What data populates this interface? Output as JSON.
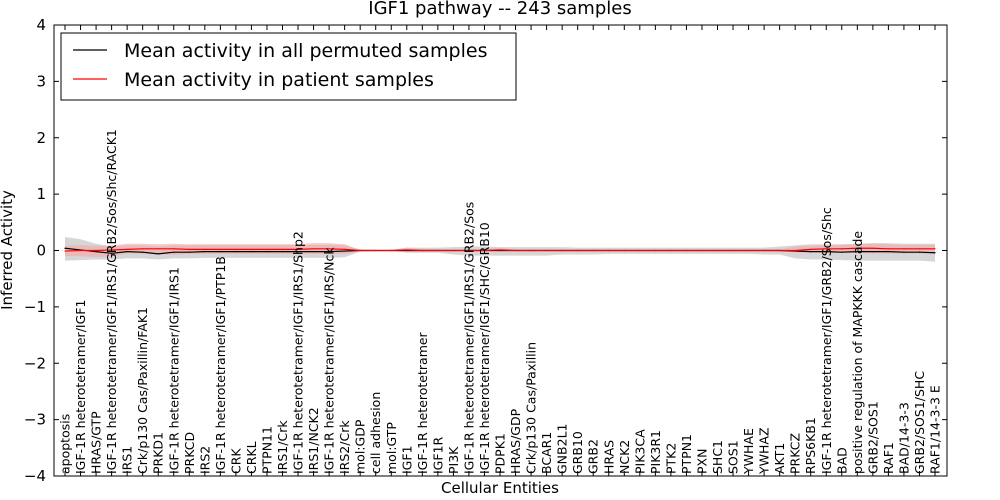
{
  "chart_data": {
    "type": "line",
    "title": "IGF1 pathway -- 243 samples",
    "xlabel": "Cellular Entities",
    "ylabel": "Inferred Activity",
    "ylim": [
      -4,
      4
    ],
    "yticks": [
      -4,
      -3,
      -2,
      -1,
      0,
      1,
      2,
      3,
      4
    ],
    "ytick_labels": [
      "−4",
      "−3",
      "−2",
      "−1",
      "0",
      "1",
      "2",
      "3",
      "4"
    ],
    "legend_position": "upper-left",
    "categories": [
      "apoptosis",
      "IGF-1R heterotetramer/IGF1",
      "HRAS/GTP",
      "IGF-1R heterotetramer/IGF1/IRS1/GRB2/Sos/Shc/RACK1",
      "IRS1",
      "Crk/p130 Cas/Paxillin/FAK1",
      "PRKD1",
      "IGF-1R heterotetramer/IGF1/IRS1",
      "PRKCD",
      "IRS2",
      "IGF-1R heterotetramer/IGF1/PTP1B",
      "CRK",
      "CRKL",
      "PTPN11",
      "IRS1/Crk",
      "IGF-1R heterotetramer/IGF1/IRS1/Shp2",
      "IRS1/NCK2",
      "IGF-1R heterotetramer/IGF1/IRS/Nck",
      "IRS2/Crk",
      "mol:GDP",
      "cell adhesion",
      "mol:GTP",
      "IGF1",
      "IGF-1R heterotetramer",
      "IGF1R",
      "PI3K",
      "IGF-1R heterotetramer/IGF1/IRS1/GRB2/Sos",
      "IGF-1R heterotetramer/IGF1/SHC/GRB10",
      "PDPK1",
      "HRAS/GDP",
      "Crk/p130 Cas/Paxillin",
      "BCAR1",
      "GNB2L1",
      "GRB10",
      "GRB2",
      "HRAS",
      "NCK2",
      "PIK3CA",
      "PIK3R1",
      "PTK2",
      "PTPN1",
      "PXN",
      "SHC1",
      "SOS1",
      "YWHAE",
      "YWHAZ",
      "AKT1",
      "PRKCZ",
      "RPS6KB1",
      "IGF-1R heterotetramer/IGF1/GRB2/Sos/Shc",
      "BAD",
      "positive regulation of MAPKKK cascade",
      "GRB2/SOS1",
      "RAF1",
      "BAD/14-3-3",
      "GRB2/SOS1/SHC",
      "RAF1/14-3-3 E"
    ],
    "series": [
      {
        "name": "Mean activity in all permuted samples",
        "color": "#000000",
        "band_color": "#c8c8c8",
        "values": [
          0.04,
          0.01,
          -0.02,
          -0.05,
          -0.02,
          -0.03,
          -0.06,
          -0.03,
          -0.03,
          -0.02,
          -0.02,
          -0.02,
          -0.02,
          -0.02,
          -0.02,
          -0.02,
          -0.02,
          -0.02,
          -0.01,
          0.0,
          0.0,
          0.0,
          0.0,
          0.0,
          0.0,
          0.0,
          0.0,
          0.0,
          0.0,
          0.0,
          0.0,
          0.0,
          0.0,
          0.0,
          0.0,
          0.0,
          0.0,
          0.0,
          0.0,
          0.0,
          0.0,
          0.0,
          0.0,
          0.0,
          0.0,
          0.0,
          0.0,
          -0.01,
          -0.02,
          -0.02,
          -0.03,
          -0.02,
          -0.02,
          -0.02,
          -0.03,
          -0.03,
          -0.04
        ],
        "lower": [
          -0.18,
          -0.17,
          -0.16,
          -0.16,
          -0.14,
          -0.14,
          -0.16,
          -0.14,
          -0.14,
          -0.13,
          -0.13,
          -0.13,
          -0.13,
          -0.13,
          -0.13,
          -0.13,
          -0.13,
          -0.13,
          -0.12,
          -0.02,
          -0.01,
          -0.01,
          -0.04,
          -0.04,
          -0.04,
          -0.07,
          -0.09,
          -0.09,
          -0.09,
          -0.09,
          -0.09,
          -0.09,
          -0.07,
          -0.07,
          -0.07,
          -0.06,
          -0.06,
          -0.06,
          -0.06,
          -0.06,
          -0.06,
          -0.06,
          -0.06,
          -0.06,
          -0.06,
          -0.07,
          -0.07,
          -0.14,
          -0.16,
          -0.16,
          -0.17,
          -0.18,
          -0.18,
          -0.18,
          -0.18,
          -0.18,
          -0.2
        ],
        "upper": [
          0.24,
          0.2,
          0.12,
          0.07,
          0.09,
          0.09,
          0.07,
          0.09,
          0.09,
          0.1,
          0.1,
          0.1,
          0.1,
          0.1,
          0.1,
          0.1,
          0.1,
          0.1,
          0.09,
          0.02,
          0.01,
          0.01,
          0.05,
          0.05,
          0.05,
          0.06,
          0.07,
          0.07,
          0.06,
          0.06,
          0.06,
          0.06,
          0.06,
          0.05,
          0.05,
          0.05,
          0.05,
          0.05,
          0.05,
          0.05,
          0.05,
          0.05,
          0.05,
          0.05,
          0.05,
          0.05,
          0.07,
          0.09,
          0.11,
          0.11,
          0.11,
          0.12,
          0.13,
          0.13,
          0.12,
          0.12,
          0.12
        ]
      },
      {
        "name": "Mean activity in patient samples",
        "color": "#ff0000",
        "band_color": "#f4a6a6",
        "values": [
          -0.01,
          0.0,
          0.0,
          0.01,
          0.02,
          0.03,
          0.03,
          0.03,
          0.02,
          0.02,
          0.02,
          0.02,
          0.02,
          0.02,
          0.02,
          0.02,
          0.03,
          0.03,
          0.02,
          0.0,
          0.0,
          0.0,
          0.01,
          0.0,
          0.0,
          0.0,
          0.0,
          0.0,
          0.01,
          0.0,
          0.0,
          0.0,
          0.0,
          0.0,
          0.0,
          0.0,
          0.0,
          0.0,
          0.0,
          0.0,
          0.0,
          0.0,
          0.0,
          0.0,
          0.0,
          0.0,
          0.0,
          0.0,
          0.02,
          0.03,
          0.03,
          0.04,
          0.04,
          0.03,
          0.03,
          0.03,
          0.03
        ],
        "lower": [
          -0.1,
          -0.1,
          -0.12,
          -0.1,
          -0.05,
          -0.06,
          -0.06,
          -0.08,
          -0.06,
          -0.06,
          -0.06,
          -0.06,
          -0.06,
          -0.06,
          -0.06,
          -0.06,
          -0.06,
          -0.06,
          -0.06,
          -0.01,
          -0.01,
          -0.01,
          -0.02,
          -0.02,
          -0.01,
          -0.01,
          -0.01,
          -0.01,
          -0.02,
          -0.01,
          -0.01,
          -0.01,
          -0.01,
          -0.01,
          -0.01,
          -0.01,
          -0.01,
          -0.01,
          -0.01,
          -0.01,
          -0.01,
          -0.01,
          -0.01,
          -0.01,
          -0.01,
          -0.01,
          -0.02,
          -0.03,
          -0.04,
          -0.04,
          -0.04,
          -0.04,
          -0.05,
          -0.05,
          -0.05,
          -0.05,
          -0.06
        ],
        "upper": [
          0.08,
          0.1,
          0.08,
          0.09,
          0.12,
          0.12,
          0.11,
          0.12,
          0.11,
          0.11,
          0.11,
          0.11,
          0.11,
          0.11,
          0.11,
          0.11,
          0.13,
          0.13,
          0.11,
          0.01,
          0.01,
          0.01,
          0.05,
          0.02,
          0.01,
          0.01,
          0.01,
          0.01,
          0.05,
          0.01,
          0.01,
          0.01,
          0.01,
          0.01,
          0.01,
          0.01,
          0.01,
          0.01,
          0.01,
          0.01,
          0.01,
          0.01,
          0.01,
          0.01,
          0.01,
          0.01,
          0.02,
          0.07,
          0.08,
          0.09,
          0.1,
          0.11,
          0.12,
          0.11,
          0.1,
          0.1,
          0.1
        ]
      }
    ]
  }
}
